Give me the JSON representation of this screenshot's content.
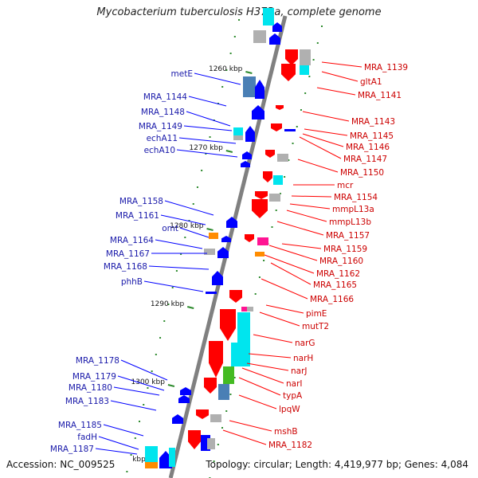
{
  "title": "Mycobacterium tuberculosis H37Ra, complete genome",
  "footer": {
    "accession": "Accession: NC_009525",
    "topology": "Topology: circular; Length: 4,419,977 bp; Genes: 4,084"
  },
  "colors": {
    "forward_gene": "#ff0000",
    "reverse_gene": "#0000ff",
    "forward_label": "#cc0000",
    "reverse_label": "#1a1aaa",
    "backbone": "#808080",
    "tick": "#2e8b2e",
    "cyan": "#00e5ee",
    "grey": "#b0b0b0",
    "orange": "#ff8c00",
    "magenta": "#ff1493",
    "green": "#44bb22",
    "steel": "#4a7fb5"
  },
  "scale_ticks": [
    "1260 kbp",
    "1270 kbp",
    "1280 kbp",
    "1290 kbp",
    "1300 kbp",
    "kbp"
  ],
  "genes_reverse": [
    "metE",
    "MRA_1144",
    "MRA_1148",
    "MRA_1149",
    "echA11",
    "echA10",
    "MRA_1158",
    "MRA_1161",
    "omt",
    "MRA_1164",
    "MRA_1167",
    "MRA_1168",
    "phhB",
    "MRA_1178",
    "MRA_1179",
    "MRA_1180",
    "MRA_1183",
    "MRA_1185",
    "fadH",
    "MRA_1187"
  ],
  "genes_forward": [
    "MRA_1139",
    "gltA1",
    "MRA_1141",
    "MRA_1143",
    "MRA_1145",
    "MRA_1146",
    "MRA_1147",
    "MRA_1150",
    "mcr",
    "MRA_1154",
    "mmpL13a",
    "mmpL13b",
    "MRA_1157",
    "MRA_1159",
    "MRA_1160",
    "MRA_1162",
    "MRA_1165",
    "MRA_1166",
    "pimE",
    "mutT2",
    "narG",
    "narH",
    "narJ",
    "narI",
    "typA",
    "lpqW",
    "mshB",
    "MRA_1182"
  ]
}
